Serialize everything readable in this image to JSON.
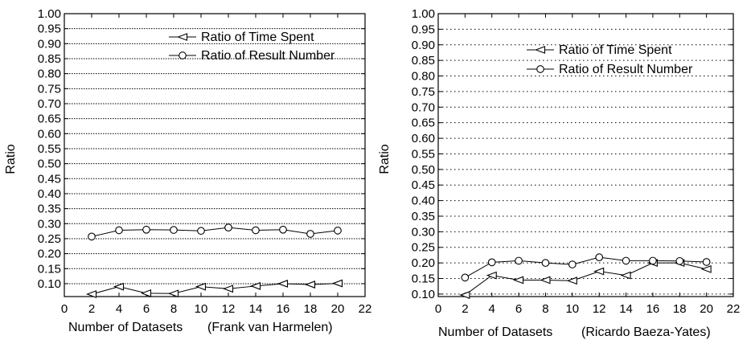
{
  "chart_data": [
    {
      "type": "line",
      "title": "",
      "xlabel": "Number of Datasets",
      "subtitle": "(Frank van Harmelen)",
      "ylabel": "Ratio",
      "xlim": [
        0,
        22
      ],
      "ylim": [
        0.1,
        1.0
      ],
      "xticks": [
        "0",
        "2",
        "4",
        "6",
        "8",
        "10",
        "12",
        "14",
        "16",
        "18",
        "20",
        "22"
      ],
      "yticks": [
        "0.10",
        "0.15",
        "0.20",
        "0.25",
        "0.30",
        "0.35",
        "0.40",
        "0.45",
        "0.50",
        "0.55",
        "0.60",
        "0.65",
        "0.70",
        "0.75",
        "0.80",
        "0.85",
        "0.90",
        "0.95",
        "1.00"
      ],
      "grid": "horizontal dotted",
      "legend_position": "top-right",
      "x": [
        2,
        4,
        6,
        8,
        10,
        12,
        14,
        16,
        18,
        20
      ],
      "series": [
        {
          "name": "Ratio of Time Spent",
          "marker": "left-triangle",
          "values": [
            0.065,
            0.09,
            0.068,
            0.067,
            0.09,
            0.083,
            0.092,
            0.1,
            0.097,
            0.101
          ]
        },
        {
          "name": "Ratio of Result Number",
          "marker": "circle",
          "values": [
            0.257,
            0.278,
            0.28,
            0.279,
            0.276,
            0.287,
            0.278,
            0.28,
            0.266,
            0.277
          ]
        }
      ]
    },
    {
      "type": "line",
      "title": "",
      "xlabel": "Number of Datasets",
      "subtitle": "(Ricardo Baeza-Yates)",
      "ylabel": "Ratio",
      "xlim": [
        0,
        22
      ],
      "ylim": [
        0.1,
        1.0
      ],
      "xticks": [
        "0",
        "2",
        "4",
        "6",
        "8",
        "10",
        "12",
        "14",
        "16",
        "18",
        "20",
        "22"
      ],
      "yticks": [
        "0.10",
        "0.15",
        "0.20",
        "0.25",
        "0.30",
        "0.35",
        "0.40",
        "0.45",
        "0.50",
        "0.55",
        "0.60",
        "0.65",
        "0.70",
        "0.75",
        "0.80",
        "0.85",
        "0.90",
        "0.95",
        "1.00"
      ],
      "grid": "horizontal dotted",
      "legend_position": "top-right",
      "x": [
        2,
        4,
        6,
        8,
        10,
        12,
        14,
        16,
        18,
        20
      ],
      "series": [
        {
          "name": "Ratio of Time Spent",
          "marker": "left-triangle",
          "values": [
            0.097,
            0.16,
            0.145,
            0.145,
            0.143,
            0.173,
            0.16,
            0.2,
            0.2,
            0.18
          ]
        },
        {
          "name": "Ratio of Result Number",
          "marker": "circle",
          "values": [
            0.153,
            0.202,
            0.207,
            0.2,
            0.195,
            0.218,
            0.207,
            0.207,
            0.206,
            0.203
          ]
        }
      ]
    }
  ]
}
